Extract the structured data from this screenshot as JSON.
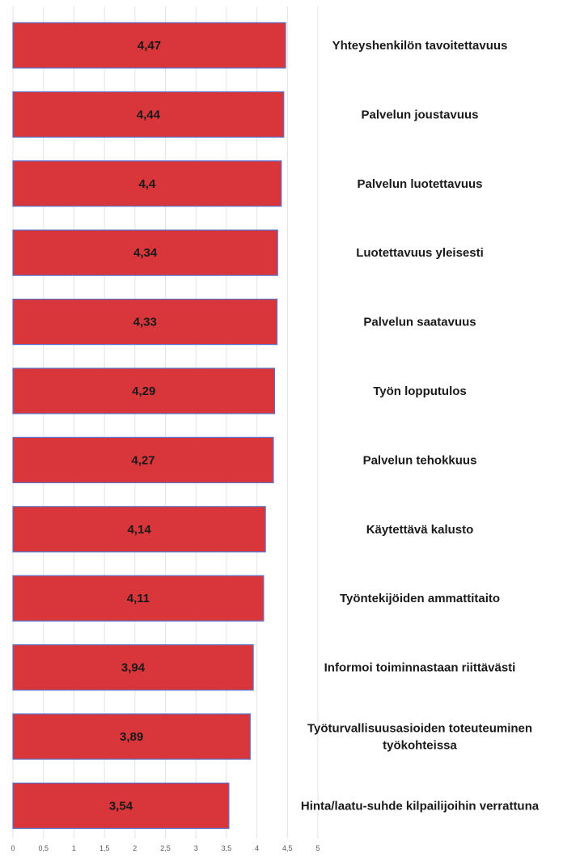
{
  "chart_data": {
    "type": "bar",
    "orientation": "horizontal",
    "categories": [
      [
        "Yhteyshenkilön tavoitettavuus"
      ],
      [
        "Palvelun joustavuus"
      ],
      [
        "Palvelun luotettavuus"
      ],
      [
        "Luotettavuus yleisesti"
      ],
      [
        "Palvelun saatavuus"
      ],
      [
        "Työn lopputulos"
      ],
      [
        "Palvelun tehokkuus"
      ],
      [
        "Käytettävä kalusto"
      ],
      [
        "Työntekijöiden ammattitaito"
      ],
      [
        "Informoi toiminnastaan riittävästi"
      ],
      [
        "Työturvallisuusasioiden toteuteuminen",
        "työkohteissa"
      ],
      [
        "Hinta/laatu-suhde kilpailijoihin verrattuna"
      ]
    ],
    "values": [
      4.47,
      4.44,
      4.4,
      4.34,
      4.33,
      4.29,
      4.27,
      4.14,
      4.11,
      3.94,
      3.89,
      3.54
    ],
    "value_labels": [
      "4,47",
      "4,44",
      "4,4",
      "4,34",
      "4,33",
      "4,29",
      "4,27",
      "4,14",
      "4,11",
      "3,94",
      "3,89",
      "3,54"
    ],
    "x_ticks": [
      0,
      0.5,
      1,
      1.5,
      2,
      2.5,
      3,
      3.5,
      4,
      4.5,
      5
    ],
    "x_tick_labels": [
      "0",
      "0,5",
      "1",
      "1,5",
      "2",
      "2,5",
      "3",
      "3,5",
      "4",
      "4,5",
      "5"
    ],
    "xlim": [
      0,
      5
    ],
    "grid": true,
    "legend": "none",
    "title": "",
    "xlabel": "",
    "ylabel": "",
    "colors": {
      "bar_fill": "#d9363b",
      "bar_edge": "#5b72c8",
      "gridline": "#e3e3e3",
      "text": "#1a1a1a",
      "tick_text": "#595959"
    }
  }
}
